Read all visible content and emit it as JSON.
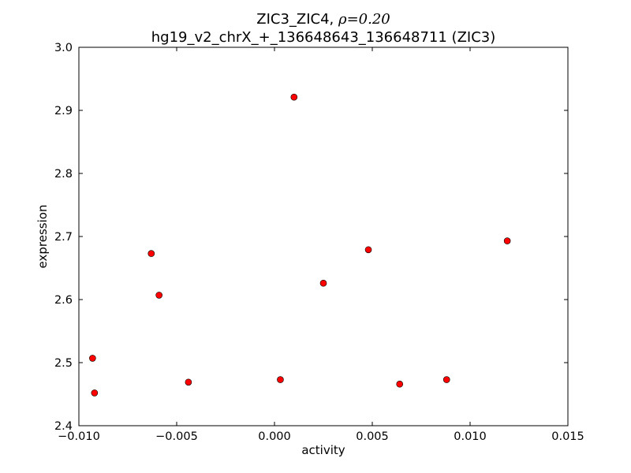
{
  "chart_data": {
    "type": "scatter",
    "title_prefix": "ZIC3_ZIC4, ",
    "title_symbol": "ρ",
    "title_value": "=0.20",
    "subtitle": "hg19_v2_chrX_+_136648643_136648711 (ZIC3)",
    "xlabel": "activity",
    "ylabel": "expression",
    "xlim": [
      -0.01,
      0.015
    ],
    "ylim": [
      2.4,
      3.0
    ],
    "x_ticks": [
      -0.01,
      -0.005,
      0.0,
      0.005,
      0.01,
      0.015
    ],
    "x_tick_labels": [
      "−0.010",
      "−0.005",
      "0.000",
      "0.005",
      "0.010",
      "0.015"
    ],
    "y_ticks": [
      2.4,
      2.5,
      2.6,
      2.7,
      2.8,
      2.9,
      3.0
    ],
    "y_tick_labels": [
      "2.4",
      "2.5",
      "2.6",
      "2.7",
      "2.8",
      "2.9",
      "3.0"
    ],
    "grid": false,
    "marker_color": "#ff0000",
    "points": [
      {
        "x": -0.0093,
        "y": 2.507
      },
      {
        "x": -0.0092,
        "y": 2.452
      },
      {
        "x": -0.0063,
        "y": 2.673
      },
      {
        "x": -0.0059,
        "y": 2.607
      },
      {
        "x": -0.0044,
        "y": 2.469
      },
      {
        "x": 0.0003,
        "y": 2.473
      },
      {
        "x": 0.001,
        "y": 2.921
      },
      {
        "x": 0.0025,
        "y": 2.626
      },
      {
        "x": 0.0048,
        "y": 2.679
      },
      {
        "x": 0.0064,
        "y": 2.466
      },
      {
        "x": 0.0088,
        "y": 2.473
      },
      {
        "x": 0.0119,
        "y": 2.693
      }
    ]
  }
}
